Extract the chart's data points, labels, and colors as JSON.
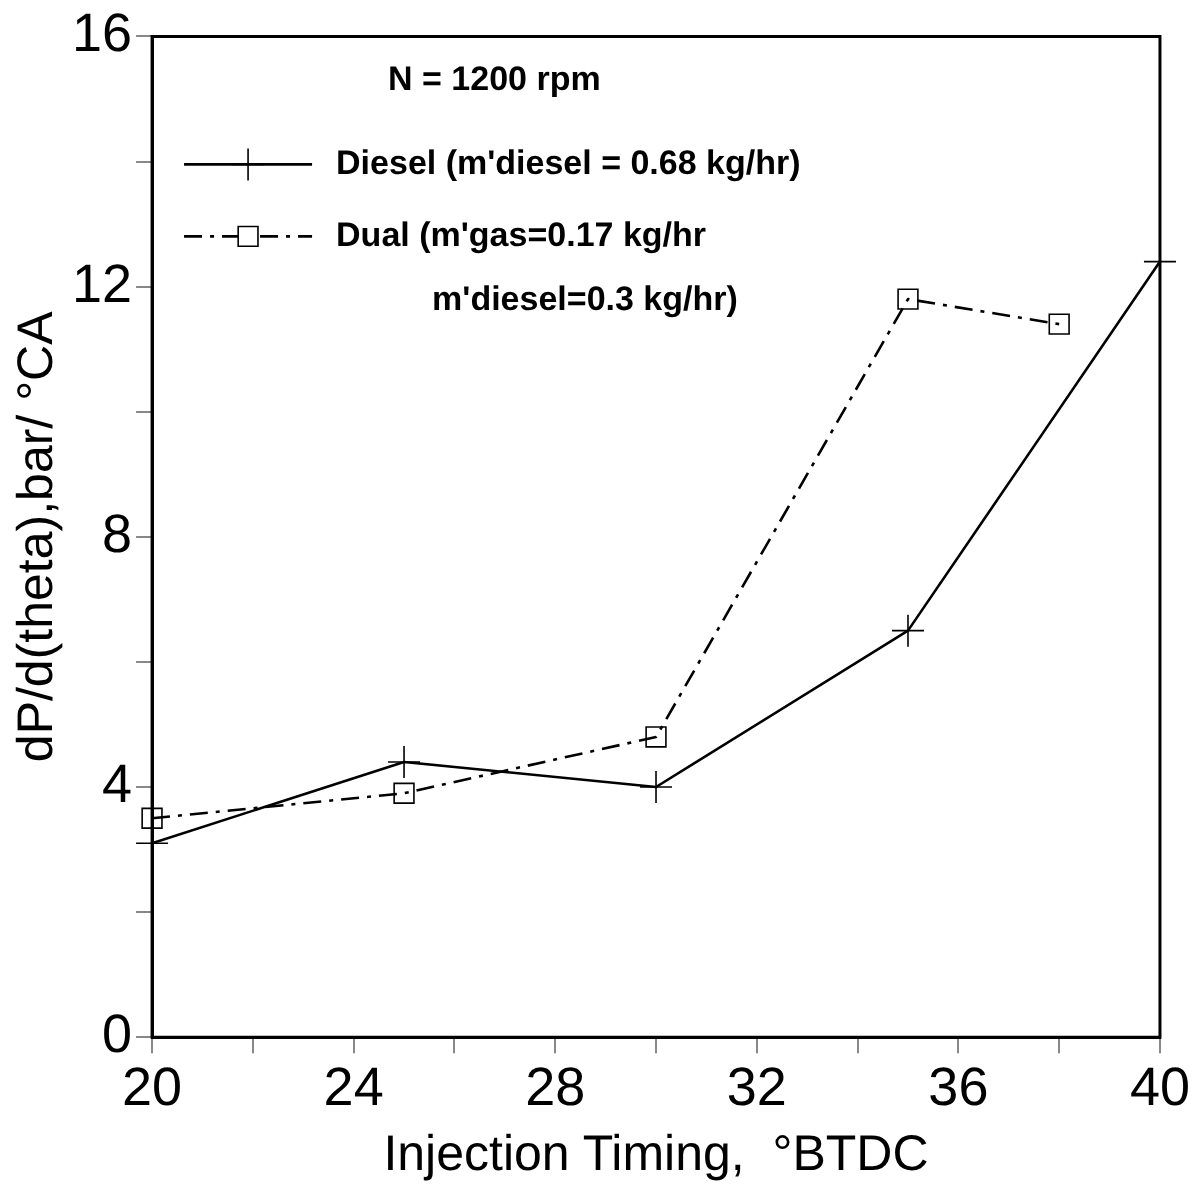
{
  "chart_data": {
    "type": "line",
    "xlabel": "Injection Timing,  °BTDC",
    "ylabel": "dP/d(theta),bar/ °CA",
    "annotations": [
      "N = 1200 rpm"
    ],
    "xlim": [
      20,
      40
    ],
    "ylim": [
      0,
      16
    ],
    "xticks": [
      20,
      {
        "value": 22,
        "label": null
      },
      24,
      {
        "value": 26,
        "label": null
      },
      28,
      {
        "value": 30,
        "label": null
      },
      32,
      {
        "value": 34,
        "label": null
      },
      36,
      {
        "value": 38,
        "label": null
      },
      40
    ],
    "yticks": [
      0,
      {
        "value": 2,
        "label": null
      },
      4,
      {
        "value": 6,
        "label": null
      },
      8,
      {
        "value": 10,
        "label": null
      },
      12,
      {
        "value": 14,
        "label": null
      },
      16
    ],
    "grid": false,
    "legend": "top left",
    "series": [
      {
        "name": "Diesel (m'diesel = 0.68 kg/hr)",
        "color": "#000000",
        "x": [
          20,
          25,
          30,
          35,
          40
        ],
        "values": [
          3.1,
          4.4,
          4.0,
          6.5,
          12.4
        ],
        "marker": "cross",
        "line_style": "solid"
      },
      {
        "name": "Dual (m'gas=0.17 kg/hr m'diesel=0.3 kg/hr)",
        "color": "#000000",
        "x": [
          20,
          25,
          30,
          35,
          38
        ],
        "values": [
          3.5,
          3.9,
          4.8,
          11.8,
          11.4
        ],
        "marker": "square",
        "line_style": "dashed"
      }
    ]
  }
}
